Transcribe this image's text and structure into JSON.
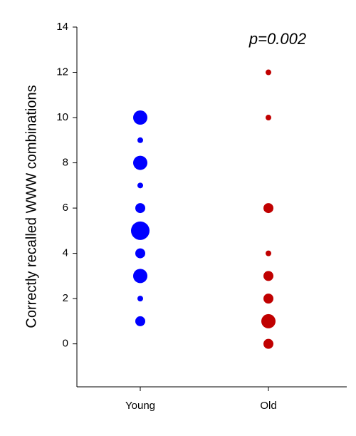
{
  "chart_data": {
    "type": "bubble",
    "y_label": "Correctly recalled WWW combinations",
    "annotation": "p=0.002",
    "categories": [
      "Young",
      "Old"
    ],
    "groups": [
      {
        "color": "#0000ff",
        "values": [
          10,
          9,
          8,
          7,
          6,
          5,
          4,
          3,
          2,
          1
        ],
        "sizes": [
          3,
          1,
          3,
          1,
          2,
          4,
          2,
          3,
          1,
          2
        ]
      },
      {
        "color": "#c00000",
        "values": [
          12,
          10,
          6,
          4,
          3,
          2,
          1,
          0
        ],
        "sizes": [
          1,
          1,
          2,
          1,
          2,
          2,
          3,
          2
        ]
      }
    ],
    "ylim": [
      -1.9,
      14
    ],
    "yticks": [
      0,
      2,
      4,
      6,
      8,
      10,
      12,
      14
    ],
    "grid": false
  }
}
